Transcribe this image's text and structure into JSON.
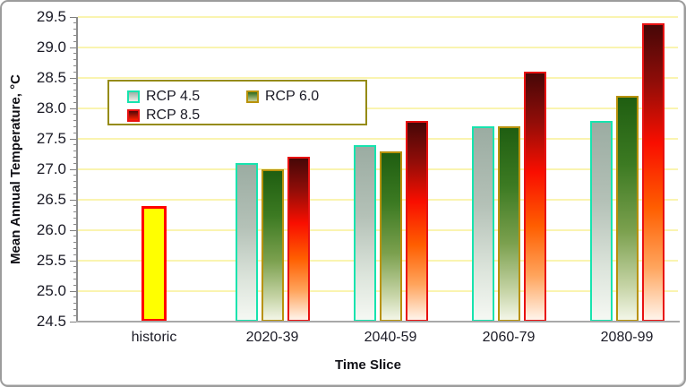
{
  "legend": {
    "items": [
      {
        "key": "rcp45",
        "label": "RCP 4.5"
      },
      {
        "key": "rcp60",
        "label": "RCP 6.0"
      },
      {
        "key": "rcp85",
        "label": "RCP 8.5"
      }
    ]
  },
  "chart_data": {
    "type": "bar",
    "title": "",
    "xlabel": "Time Slice",
    "ylabel": "Mean Annual Temperature, °C",
    "ylim": [
      24.5,
      29.5
    ],
    "ytick_step": 0.5,
    "ytick_labels": [
      "29.5",
      "29.0",
      "28.5",
      "28.0",
      "27.5",
      "27.0",
      "26.5",
      "26.0",
      "25.5",
      "25.0",
      "24.5"
    ],
    "categories": [
      "historic",
      "2020-39",
      "2040-59",
      "2060-79",
      "2080-99"
    ],
    "series": [
      {
        "key": "historic",
        "name": "historic",
        "values": [
          26.4,
          null,
          null,
          null,
          null
        ]
      },
      {
        "key": "rcp45",
        "name": "RCP 4.5",
        "values": [
          null,
          27.1,
          27.4,
          27.7,
          27.8
        ]
      },
      {
        "key": "rcp60",
        "name": "RCP 6.0",
        "values": [
          null,
          27.0,
          27.3,
          27.7,
          28.2
        ]
      },
      {
        "key": "rcp85",
        "name": "RCP 8.5",
        "values": [
          null,
          27.2,
          27.8,
          28.6,
          29.4
        ]
      }
    ],
    "grid": "horizontal",
    "grid_color": "#faf4b0",
    "legend_position": "top-left-inside",
    "colors": {
      "historic_fill": "#ffff00",
      "historic_border": "#ff0000",
      "rcp45_border": "#17e3ae",
      "rcp60_border": "#b8920b",
      "rcp85_border": "#e81111",
      "legend_border": "#958b13"
    }
  }
}
